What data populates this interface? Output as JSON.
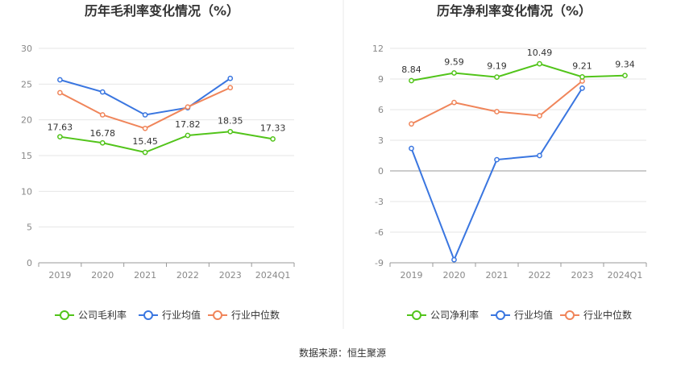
{
  "source": "数据来源：恒生聚源",
  "chart_data": [
    {
      "type": "line",
      "title": "历年毛利率变化情况（%）",
      "categories": [
        "2019",
        "2020",
        "2021",
        "2022",
        "2023",
        "2024Q1"
      ],
      "ylim": [
        0,
        30
      ],
      "yticks": [
        0,
        5,
        10,
        15,
        20,
        25,
        30
      ],
      "grid": true,
      "legend_placement": "bottom",
      "series": [
        {
          "name": "公司毛利率",
          "color": "#52c41a",
          "values": [
            17.63,
            16.78,
            15.45,
            17.82,
            18.35,
            17.33
          ],
          "labels": [
            "17.63",
            "16.78",
            "15.45",
            "17.82",
            "18.35",
            "17.33"
          ]
        },
        {
          "name": "行业均值",
          "color": "#3a76e0",
          "values": [
            25.6,
            23.9,
            20.7,
            21.7,
            25.8,
            null
          ]
        },
        {
          "name": "行业中位数",
          "color": "#f0855a",
          "values": [
            23.8,
            20.7,
            18.8,
            21.8,
            24.5,
            null
          ]
        }
      ]
    },
    {
      "type": "line",
      "title": "历年净利率变化情况（%）",
      "categories": [
        "2019",
        "2020",
        "2021",
        "2022",
        "2023",
        "2024Q1"
      ],
      "ylim": [
        -9,
        12
      ],
      "yticks": [
        -9,
        -6,
        -3,
        0,
        3,
        6,
        9,
        12
      ],
      "grid": true,
      "legend_placement": "bottom",
      "series": [
        {
          "name": "公司净利率",
          "color": "#52c41a",
          "values": [
            8.84,
            9.59,
            9.19,
            10.49,
            9.21,
            9.34
          ],
          "labels": [
            "8.84",
            "9.59",
            "9.19",
            "10.49",
            "9.21",
            "9.34"
          ]
        },
        {
          "name": "行业均值",
          "color": "#3a76e0",
          "values": [
            2.2,
            -8.7,
            1.1,
            1.5,
            8.1,
            null
          ]
        },
        {
          "name": "行业中位数",
          "color": "#f0855a",
          "values": [
            4.6,
            6.7,
            5.8,
            5.4,
            8.8,
            null
          ]
        }
      ]
    }
  ]
}
